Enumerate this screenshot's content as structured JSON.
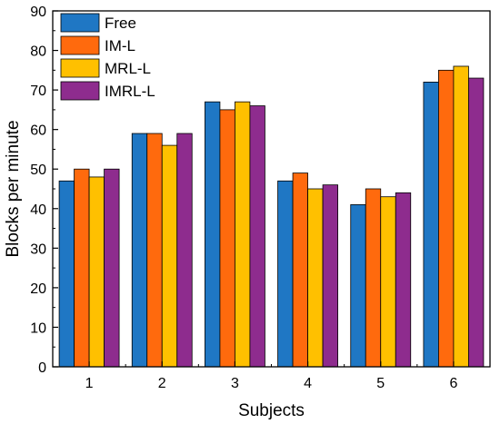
{
  "chart_data": {
    "type": "bar",
    "xlabel": "Subjects",
    "ylabel": "Blocks per minute",
    "ylim": [
      0,
      90
    ],
    "yticks": [
      0,
      10,
      20,
      30,
      40,
      50,
      60,
      70,
      80,
      90
    ],
    "categories": [
      "1",
      "2",
      "3",
      "4",
      "5",
      "6"
    ],
    "grid": false,
    "legend_position": "top-left",
    "series": [
      {
        "name": "Free",
        "color": "#1f77c4",
        "values": [
          47,
          59,
          67,
          47,
          41,
          72
        ]
      },
      {
        "name": "IM-L",
        "color": "#ff6a0d",
        "values": [
          50,
          59,
          65,
          49,
          45,
          75
        ]
      },
      {
        "name": "MRL-L",
        "color": "#ffc000",
        "values": [
          48,
          56,
          67,
          45,
          43,
          76
        ]
      },
      {
        "name": "IMRL-L",
        "color": "#8e2c8e",
        "values": [
          50,
          59,
          66,
          46,
          44,
          73
        ]
      }
    ]
  }
}
